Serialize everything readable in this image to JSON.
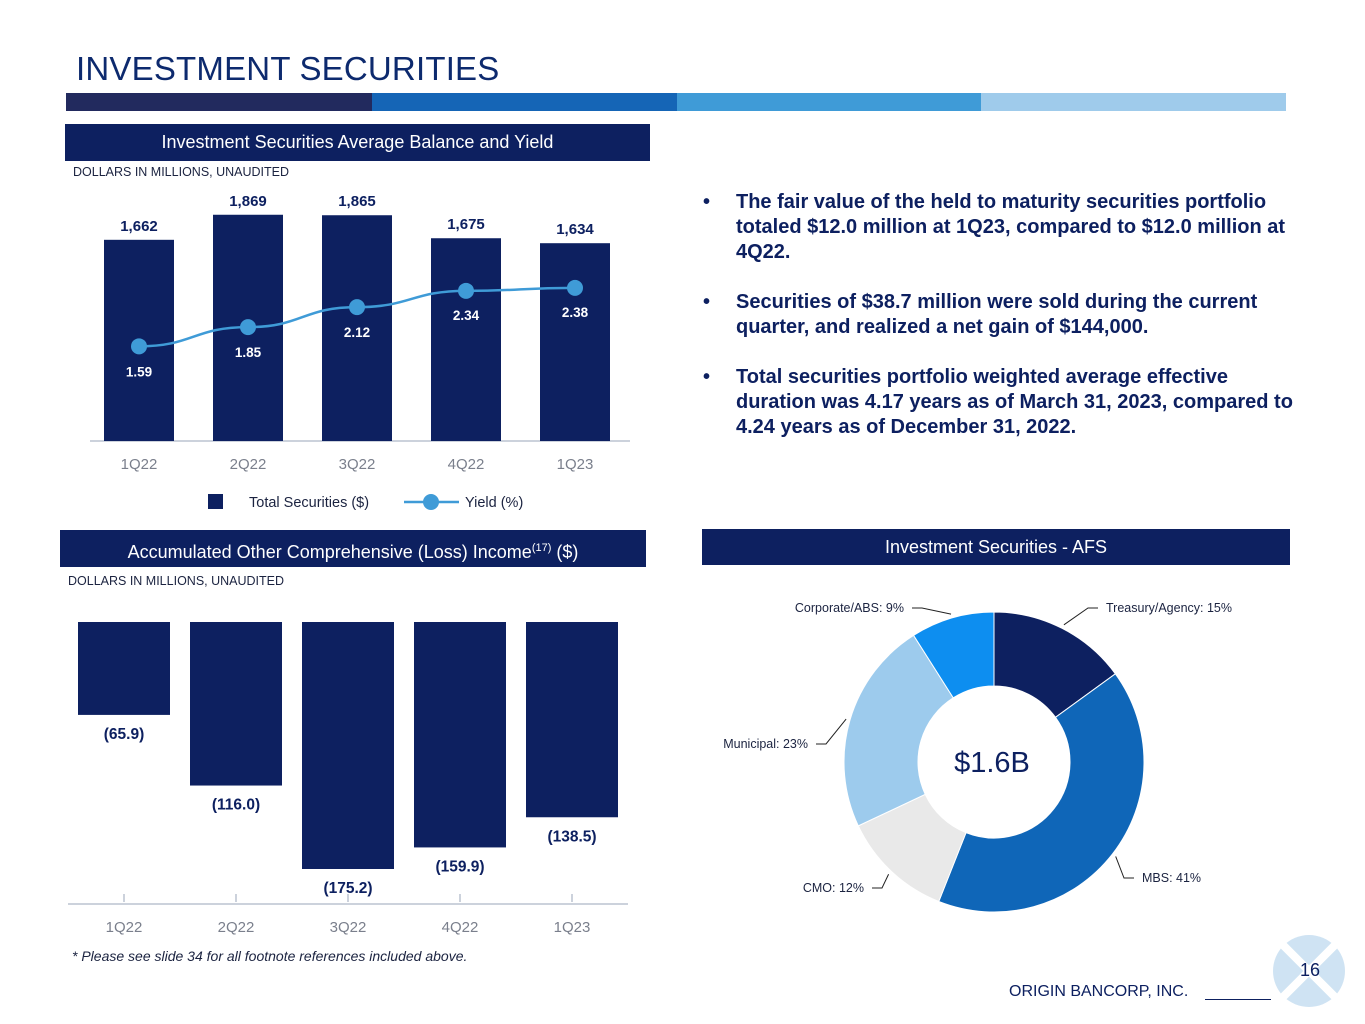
{
  "page_title": "INVESTMENT SECURITIES",
  "band_colors": [
    "#222a5e",
    "#1565b6",
    "#3f9bd7",
    "#9fcbeb"
  ],
  "chart1": {
    "header": "Investment Securities Average Balance and Yield",
    "subtitle": "DOLLARS IN MILLIONS, UNAUDITED",
    "legend_bar": "Total Securities ($)",
    "legend_line": "Yield (%)"
  },
  "chart2": {
    "header_main": "Accumulated Other Comprehensive (Loss) Income",
    "header_sup": "(17)",
    "header_tail": " ($)",
    "subtitle": "DOLLARS IN MILLIONS, UNAUDITED"
  },
  "chart3": {
    "header": "Investment Securities - AFS",
    "center_label": "$1.6B"
  },
  "bullets": [
    "The fair value of the held to maturity securities portfolio totaled $12.0 million at 1Q23, compared to $12.0 million at 4Q22.",
    "Securities of $38.7 million were sold during the current quarter, and realized a net gain of $144,000.",
    "Total securities portfolio weighted average effective duration was 4.17 years as of March 31, 2023, compared to 4.24 years as of December 31, 2022."
  ],
  "bullet_symbol": "•",
  "footnote": "* Please see slide 34 for all footnote references included above.",
  "brand": "ORIGIN BANCORP, INC.",
  "page_number": "16",
  "chart_data": [
    {
      "type": "bar",
      "title": "Investment Securities Average Balance and Yield",
      "categories": [
        "1Q22",
        "2Q22",
        "3Q22",
        "4Q22",
        "1Q23"
      ],
      "series": [
        {
          "name": "Total Securities ($)",
          "kind": "bar",
          "values": [
            1662,
            1869,
            1865,
            1675,
            1634
          ],
          "labels": [
            "1,662",
            "1,869",
            "1,865",
            "1,675",
            "1,634"
          ],
          "color": "#0d2060"
        },
        {
          "name": "Yield (%)",
          "kind": "line",
          "values": [
            1.59,
            1.85,
            2.12,
            2.34,
            2.38
          ],
          "labels": [
            "1.59",
            "1.85",
            "2.12",
            "2.34",
            "2.38"
          ],
          "color": "#3f9bd7"
        }
      ],
      "ylim": [
        0,
        1900
      ],
      "y2lim": [
        0,
        4
      ]
    },
    {
      "type": "bar",
      "title": "Accumulated Other Comprehensive (Loss) Income (17) ($)",
      "categories": [
        "1Q22",
        "2Q22",
        "3Q22",
        "4Q22",
        "1Q23"
      ],
      "values": [
        -65.9,
        -116.0,
        -175.2,
        -159.9,
        -138.5
      ],
      "labels": [
        "(65.9)",
        "(116.0)",
        "(175.2)",
        "(159.9)",
        "(138.5)"
      ],
      "color": "#0d2060",
      "ylim": [
        -175.2,
        0
      ]
    },
    {
      "type": "pie",
      "title": "Investment Securities - AFS",
      "slices": [
        {
          "label": "Treasury/Agency: 15%",
          "value": 15,
          "color": "#0d2060"
        },
        {
          "label": "MBS: 41%",
          "value": 41,
          "color": "#0f66b8"
        },
        {
          "label": "CMO: 12%",
          "value": 12,
          "color": "#e9e9e9"
        },
        {
          "label": "Municipal: 23%",
          "value": 23,
          "color": "#9dcbed"
        },
        {
          "label": "Corporate/ABS: 9%",
          "value": 9,
          "color": "#0d8ef0"
        }
      ]
    }
  ]
}
